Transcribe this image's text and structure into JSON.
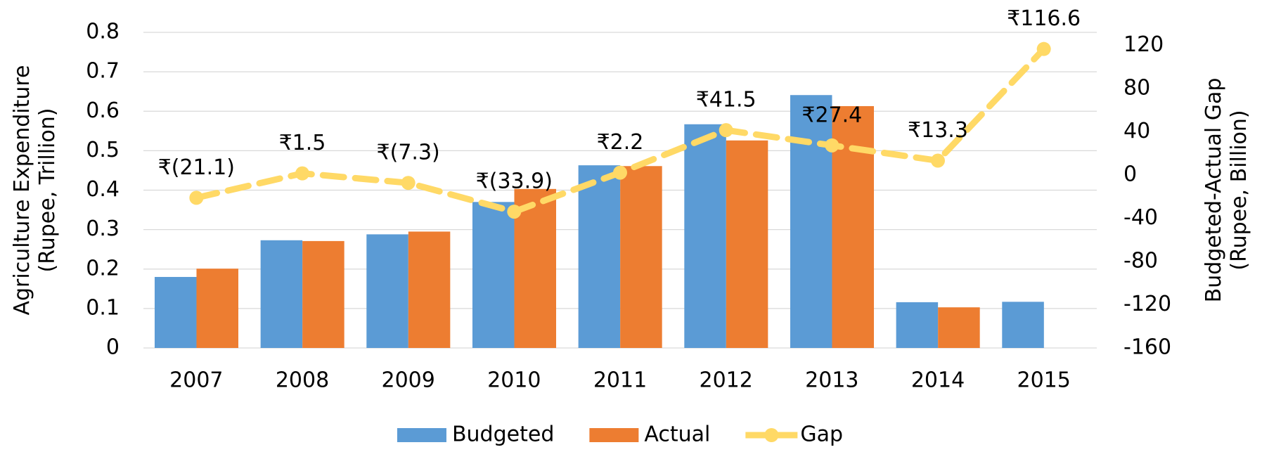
{
  "chart_data": {
    "type": "bar-line",
    "categories": [
      "2007",
      "2008",
      "2009",
      "2010",
      "2011",
      "2012",
      "2013",
      "2014",
      "2015"
    ],
    "series": [
      {
        "name": "Budgeted",
        "color": "#5b9bd5",
        "type": "bar",
        "values": [
          0.18,
          0.273,
          0.288,
          0.37,
          0.463,
          0.567,
          0.641,
          0.116,
          0.117
        ]
      },
      {
        "name": "Actual",
        "color": "#ed7d31",
        "type": "bar",
        "values": [
          0.201,
          0.271,
          0.295,
          0.403,
          0.461,
          0.526,
          0.613,
          0.103,
          null
        ]
      },
      {
        "name": "Gap",
        "color": "#ffd966",
        "type": "line",
        "axis": "y2",
        "dashed": true,
        "values": [
          -21.1,
          1.5,
          -7.3,
          -33.9,
          2.2,
          41.5,
          27.4,
          13.3,
          116.6
        ],
        "value_labels": [
          "₹(21.1)",
          "₹1.5",
          "₹(7.3)",
          "₹(33.9)",
          "₹2.2",
          "₹41.5",
          "₹27.4",
          "₹13.3",
          "₹116.6"
        ]
      }
    ],
    "negative_label_color": "#ff0000",
    "ylabel": "Agriculture Expenditure (Rupee, Trillion)",
    "y2label": "Budgeted-Actual Gap (Rupee, Billion)",
    "ylim": [
      0,
      0.8
    ],
    "yticks": [
      0,
      0.1,
      0.2,
      0.3,
      0.4,
      0.5,
      0.6,
      0.7,
      0.8
    ],
    "y2lim": [
      -160,
      132
    ],
    "y2ticks": [
      -160,
      -120,
      -80,
      -40,
      0,
      40,
      80,
      120
    ],
    "grid": true,
    "legend": "bottom"
  }
}
